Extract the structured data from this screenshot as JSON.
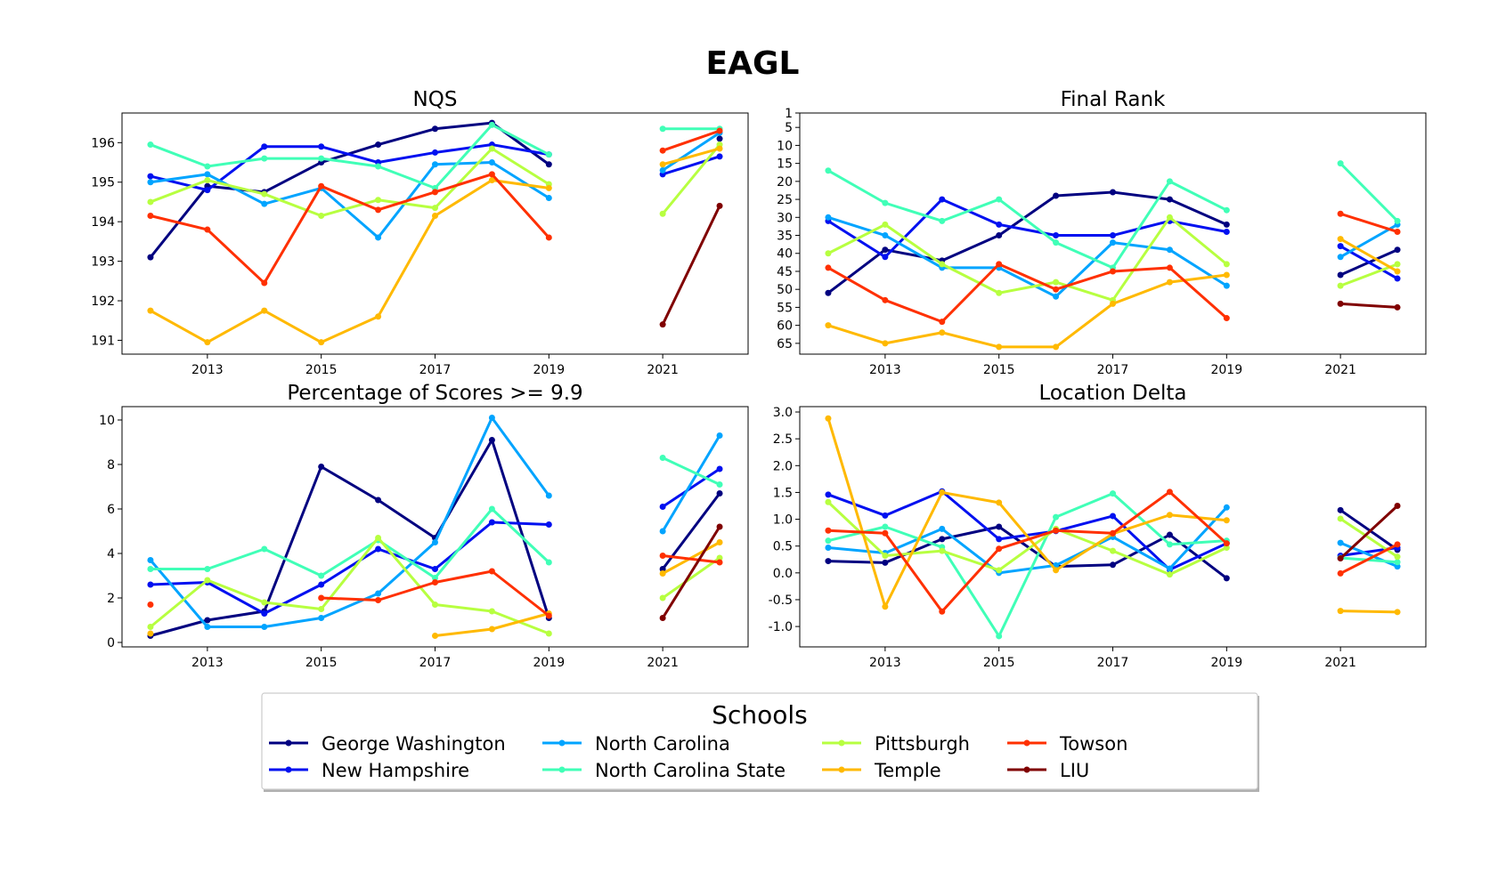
{
  "figure_title": "EAGL",
  "legend": {
    "title": "Schools",
    "entries": [
      {
        "label": "George Washington",
        "color": "#000080"
      },
      {
        "label": "New Hampshire",
        "color": "#0010f0"
      },
      {
        "label": "North Carolina",
        "color": "#00a4ff"
      },
      {
        "label": "North Carolina State",
        "color": "#40ffb7"
      },
      {
        "label": "Pittsburgh",
        "color": "#b7ff40"
      },
      {
        "label": "Temple",
        "color": "#ffb900"
      },
      {
        "label": "Towson",
        "color": "#ff3000"
      },
      {
        "label": "LIU",
        "color": "#800000"
      }
    ]
  },
  "chart_data": [
    {
      "type": "line",
      "title": "NQS",
      "xlabel": "",
      "ylabel": "",
      "x": [
        2012,
        2013,
        2014,
        2015,
        2016,
        2017,
        2018,
        2019,
        2020,
        2021,
        2022
      ],
      "xticks": [
        2013,
        2015,
        2017,
        2019,
        2021
      ],
      "xlim": [
        2011.5,
        2022.5
      ],
      "ylim": [
        190.65,
        196.75
      ],
      "yticks": [
        191,
        192,
        193,
        194,
        195,
        196
      ],
      "invert_y": false,
      "series": [
        {
          "name": "George Washington",
          "values": [
            193.1,
            194.9,
            194.75,
            195.5,
            195.95,
            196.35,
            196.5,
            195.45,
            null,
            null,
            196.1
          ]
        },
        {
          "name": "New Hampshire",
          "values": [
            195.15,
            194.8,
            195.9,
            195.9,
            195.5,
            195.75,
            195.95,
            195.7,
            null,
            195.2,
            195.65
          ]
        },
        {
          "name": "North Carolina",
          "values": [
            195.0,
            195.2,
            194.45,
            194.85,
            193.6,
            195.45,
            195.5,
            194.6,
            null,
            195.3,
            196.25
          ]
        },
        {
          "name": "North Carolina State",
          "values": [
            195.95,
            195.4,
            195.6,
            195.6,
            195.4,
            194.85,
            196.45,
            195.7,
            null,
            196.35,
            196.35
          ]
        },
        {
          "name": "Pittsburgh",
          "values": [
            194.5,
            195.05,
            194.7,
            194.15,
            194.55,
            194.35,
            195.85,
            194.95,
            null,
            194.2,
            195.95
          ]
        },
        {
          "name": "Temple",
          "values": [
            191.75,
            190.95,
            191.75,
            190.95,
            191.6,
            194.15,
            195.05,
            194.85,
            null,
            195.45,
            195.85
          ]
        },
        {
          "name": "Towson",
          "values": [
            194.15,
            193.8,
            192.45,
            194.9,
            194.3,
            194.75,
            195.2,
            193.6,
            null,
            195.8,
            196.3
          ]
        },
        {
          "name": "LIU",
          "values": [
            null,
            null,
            null,
            null,
            null,
            null,
            null,
            null,
            null,
            191.4,
            194.4
          ]
        }
      ]
    },
    {
      "type": "line",
      "title": "Final Rank",
      "xlabel": "",
      "ylabel": "",
      "x": [
        2012,
        2013,
        2014,
        2015,
        2016,
        2017,
        2018,
        2019,
        2020,
        2021,
        2022
      ],
      "xticks": [
        2013,
        2015,
        2017,
        2019,
        2021
      ],
      "xlim": [
        2011.5,
        2022.5
      ],
      "ylim": [
        68,
        1
      ],
      "yticks": [
        1,
        5,
        10,
        15,
        20,
        25,
        30,
        35,
        40,
        45,
        50,
        55,
        60,
        65
      ],
      "invert_y": true,
      "series": [
        {
          "name": "George Washington",
          "values": [
            51,
            39,
            42,
            35,
            24,
            23,
            25,
            32,
            null,
            46,
            39
          ]
        },
        {
          "name": "New Hampshire",
          "values": [
            31,
            41,
            25,
            32,
            35,
            35,
            31,
            34,
            null,
            38,
            47
          ]
        },
        {
          "name": "North Carolina",
          "values": [
            30,
            35,
            44,
            44,
            52,
            37,
            39,
            49,
            null,
            41,
            32
          ]
        },
        {
          "name": "North Carolina State",
          "values": [
            17,
            26,
            31,
            25,
            37,
            44,
            20,
            28,
            null,
            15,
            31
          ]
        },
        {
          "name": "Pittsburgh",
          "values": [
            40,
            32,
            43,
            51,
            48,
            53,
            30,
            43,
            null,
            49,
            43
          ]
        },
        {
          "name": "Temple",
          "values": [
            60,
            65,
            62,
            66,
            66,
            54,
            48,
            46,
            null,
            36,
            45
          ]
        },
        {
          "name": "Towson",
          "values": [
            44,
            53,
            59,
            43,
            50,
            45,
            44,
            58,
            null,
            29,
            34
          ]
        },
        {
          "name": "LIU",
          "values": [
            null,
            null,
            null,
            null,
            null,
            null,
            null,
            null,
            null,
            54,
            55
          ]
        }
      ]
    },
    {
      "type": "line",
      "title": "Percentage of Scores >= 9.9",
      "xlabel": "",
      "ylabel": "",
      "x": [
        2012,
        2013,
        2014,
        2015,
        2016,
        2017,
        2018,
        2019,
        2020,
        2021,
        2022
      ],
      "xticks": [
        2013,
        2015,
        2017,
        2019,
        2021
      ],
      "xlim": [
        2011.5,
        2022.5
      ],
      "ylim": [
        -0.2,
        10.6
      ],
      "yticks": [
        0,
        2,
        4,
        6,
        8,
        10
      ],
      "invert_y": false,
      "series": [
        {
          "name": "George Washington",
          "values": [
            0.3,
            1.0,
            1.4,
            7.9,
            6.4,
            4.7,
            9.1,
            1.1,
            null,
            3.3,
            6.7
          ]
        },
        {
          "name": "New Hampshire",
          "values": [
            2.6,
            2.7,
            1.3,
            2.6,
            4.2,
            3.3,
            5.4,
            5.3,
            null,
            6.1,
            7.8
          ]
        },
        {
          "name": "North Carolina",
          "values": [
            3.7,
            0.7,
            0.7,
            1.1,
            2.2,
            4.5,
            10.1,
            6.6,
            null,
            5.0,
            9.3
          ]
        },
        {
          "name": "North Carolina State",
          "values": [
            3.3,
            3.3,
            4.2,
            3.0,
            4.6,
            2.9,
            6.0,
            3.6,
            null,
            8.3,
            7.1
          ]
        },
        {
          "name": "Pittsburgh",
          "values": [
            0.7,
            2.8,
            1.8,
            1.5,
            4.7,
            1.7,
            1.4,
            0.4,
            null,
            2.0,
            3.8
          ]
        },
        {
          "name": "Temple",
          "values": [
            0.4,
            null,
            null,
            null,
            null,
            0.3,
            0.6,
            1.3,
            null,
            3.1,
            4.5
          ]
        },
        {
          "name": "Towson",
          "values": [
            1.7,
            null,
            null,
            2.0,
            1.9,
            2.7,
            3.2,
            1.2,
            null,
            3.9,
            3.6
          ]
        },
        {
          "name": "LIU",
          "values": [
            null,
            null,
            null,
            null,
            null,
            null,
            null,
            null,
            null,
            1.1,
            5.2
          ]
        }
      ]
    },
    {
      "type": "line",
      "title": "Location Delta",
      "xlabel": "",
      "ylabel": "",
      "x": [
        2012,
        2013,
        2014,
        2015,
        2016,
        2017,
        2018,
        2019,
        2020,
        2021,
        2022
      ],
      "xticks": [
        2013,
        2015,
        2017,
        2019,
        2021
      ],
      "xlim": [
        2011.5,
        2022.5
      ],
      "ylim": [
        -1.38,
        3.1
      ],
      "yticks": [
        -1.0,
        -0.5,
        0.0,
        0.5,
        1.0,
        1.5,
        2.0,
        2.5,
        3.0
      ],
      "invert_y": false,
      "series": [
        {
          "name": "George Washington",
          "values": [
            0.22,
            0.19,
            0.63,
            0.86,
            0.12,
            0.15,
            0.71,
            -0.1,
            null,
            1.17,
            0.43
          ]
        },
        {
          "name": "New Hampshire",
          "values": [
            1.46,
            1.07,
            1.52,
            0.63,
            0.78,
            1.06,
            0.06,
            0.55,
            null,
            0.32,
            0.47
          ]
        },
        {
          "name": "North Carolina",
          "values": [
            0.47,
            0.37,
            0.82,
            0.0,
            0.14,
            0.67,
            0.08,
            1.22,
            null,
            0.56,
            0.12
          ]
        },
        {
          "name": "North Carolina State",
          "values": [
            0.6,
            0.86,
            0.48,
            -1.18,
            1.04,
            1.48,
            0.53,
            0.6,
            null,
            0.28,
            0.2
          ]
        },
        {
          "name": "Pittsburgh",
          "values": [
            1.32,
            0.32,
            0.41,
            0.05,
            0.82,
            0.41,
            -0.03,
            0.47,
            null,
            1.01,
            0.3
          ]
        },
        {
          "name": "Temple",
          "values": [
            2.88,
            -0.63,
            1.5,
            1.31,
            0.05,
            0.73,
            1.08,
            0.98,
            null,
            -0.71,
            -0.73
          ]
        },
        {
          "name": "Towson",
          "values": [
            0.79,
            0.74,
            -0.72,
            0.45,
            0.79,
            0.74,
            1.51,
            0.55,
            null,
            -0.01,
            0.53
          ]
        },
        {
          "name": "LIU",
          "values": [
            null,
            null,
            null,
            null,
            null,
            null,
            null,
            null,
            null,
            0.27,
            1.25
          ]
        }
      ]
    }
  ]
}
